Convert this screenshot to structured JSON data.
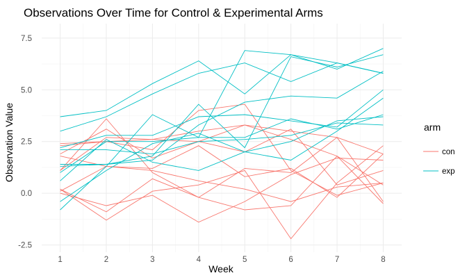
{
  "chart_data": {
    "type": "line",
    "title": "Observations Over Time for Control & Experimental Arms",
    "xlabel": "Week",
    "ylabel": "Observation Value",
    "x": [
      1,
      2,
      3,
      4,
      5,
      6,
      7,
      8
    ],
    "xlim": [
      0.6,
      8.4
    ],
    "ylim": [
      -2.85,
      8.2
    ],
    "x_ticks": [
      "1",
      "2",
      "3",
      "4",
      "5",
      "6",
      "7",
      "8"
    ],
    "y_ticks": [
      -2.5,
      0,
      2.5,
      5,
      7.5
    ],
    "y_tick_labels": [
      "-2.5",
      "0.0",
      "2.5",
      "5.0",
      "7.5"
    ],
    "grid": true,
    "legend": {
      "title": "arm",
      "placement": "right",
      "entries": [
        {
          "label": "con",
          "color": "#F8766D"
        },
        {
          "label": "exp",
          "color": "#00BFC4"
        }
      ]
    },
    "series": [
      {
        "arm": "con",
        "values": [
          0.2,
          -1.3,
          0.1,
          0.4,
          1.1,
          -2.2,
          0.5,
          2.3
        ]
      },
      {
        "arm": "con",
        "values": [
          1.1,
          2.7,
          2.6,
          2.5,
          3.3,
          3.0,
          2.7,
          1.9
        ]
      },
      {
        "arm": "con",
        "values": [
          2.4,
          2.5,
          2.6,
          3.0,
          3.3,
          2.6,
          1.8,
          0.4
        ]
      },
      {
        "arm": "con",
        "values": [
          1.8,
          1.3,
          1.1,
          0.6,
          0.2,
          -0.4,
          0.3,
          0.5
        ]
      },
      {
        "arm": "con",
        "values": [
          1.1,
          3.6,
          1.0,
          -0.2,
          1.2,
          1.0,
          2.7,
          -0.4
        ]
      },
      {
        "arm": "con",
        "values": [
          2.3,
          2.5,
          2.1,
          4.0,
          4.3,
          1.1,
          -0.1,
          0.5
        ]
      },
      {
        "arm": "con",
        "values": [
          0.1,
          1.3,
          1.2,
          2.3,
          0.8,
          1.2,
          -0.2,
          1.9
        ]
      },
      {
        "arm": "con",
        "values": [
          0.0,
          -0.6,
          -0.1,
          -1.4,
          -0.4,
          0.9,
          1.7,
          1.6
        ]
      },
      {
        "arm": "con",
        "values": [
          1.9,
          3.1,
          1.7,
          2.5,
          2.0,
          3.1,
          0.4,
          1.1
        ]
      },
      {
        "arm": "con",
        "values": [
          0.2,
          -0.9,
          0.7,
          -0.2,
          -0.8,
          -0.6,
          1.8,
          -0.5
        ]
      },
      {
        "arm": "exp",
        "values": [
          3.7,
          4.0,
          5.3,
          6.4,
          4.8,
          6.7,
          6.3,
          5.8
        ]
      },
      {
        "arm": "exp",
        "values": [
          0.6,
          2.6,
          1.5,
          1.1,
          2.0,
          2.5,
          3.5,
          3.7
        ]
      },
      {
        "arm": "exp",
        "values": [
          2.1,
          2.1,
          1.9,
          2.5,
          2.6,
          2.8,
          3.4,
          3.3
        ]
      },
      {
        "arm": "exp",
        "values": [
          3.0,
          3.7,
          4.8,
          5.8,
          6.3,
          5.4,
          6.3,
          5.8
        ]
      },
      {
        "arm": "exp",
        "values": [
          -0.8,
          1.3,
          3.8,
          2.7,
          6.9,
          6.7,
          6.0,
          7.0
        ]
      },
      {
        "arm": "exp",
        "values": [
          1.3,
          1.4,
          1.8,
          4.3,
          2.2,
          6.6,
          6.1,
          6.7
        ]
      },
      {
        "arm": "exp",
        "values": [
          2.2,
          2.8,
          2.8,
          3.7,
          3.8,
          3.5,
          3.2,
          5.0
        ]
      },
      {
        "arm": "exp",
        "values": [
          -0.4,
          1.1,
          2.4,
          2.9,
          2.0,
          1.6,
          3.0,
          4.6
        ]
      },
      {
        "arm": "exp",
        "values": [
          1.0,
          2.5,
          2.5,
          2.7,
          2.7,
          3.6,
          3.1,
          3.8
        ]
      },
      {
        "arm": "exp",
        "values": [
          1.4,
          1.4,
          1.6,
          3.3,
          4.4,
          4.7,
          4.6,
          5.9
        ]
      }
    ]
  }
}
